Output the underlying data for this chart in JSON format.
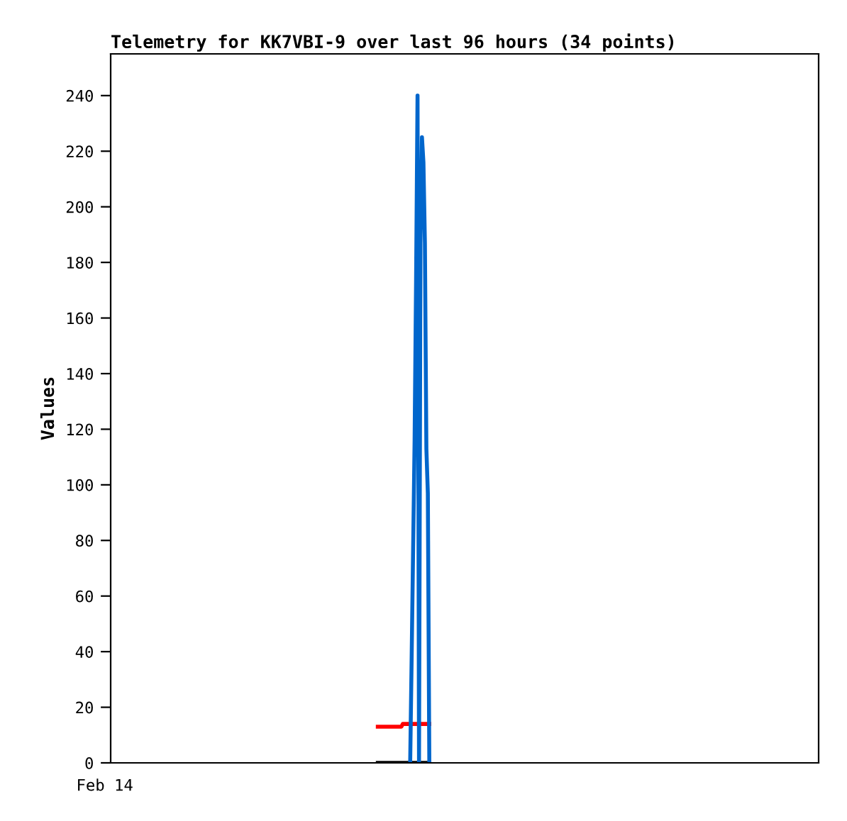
{
  "chart_data": {
    "type": "line",
    "title": "Telemetry for KK7VBI-9 over last 96 hours (34 points)",
    "ylabel": "Values",
    "categories": [
      null,
      null,
      null,
      null,
      null,
      null,
      null,
      null,
      null,
      null,
      null,
      null,
      null,
      null,
      null,
      null,
      null,
      null,
      null,
      null,
      null,
      null,
      null,
      null,
      null,
      null,
      null,
      null,
      null,
      null,
      null,
      null,
      null,
      null,
      null,
      null,
      null,
      null,
      null,
      null,
      null,
      null,
      null,
      null,
      null,
      null,
      null,
      null,
      null,
      null,
      null,
      null,
      null,
      null,
      null,
      null,
      null,
      null,
      null,
      null,
      null,
      null,
      null,
      null,
      null,
      null,
      null,
      null,
      null,
      null,
      null,
      null,
      null,
      null,
      null,
      null,
      null,
      null,
      null,
      null,
      null,
      null,
      null,
      null,
      null,
      null,
      null,
      null,
      null,
      null,
      null,
      null,
      null,
      null,
      null,
      null,
      null,
      null,
      null,
      null,
      null,
      null,
      null,
      null,
      null,
      null,
      null,
      null,
      null,
      null,
      null,
      null,
      null,
      null,
      null,
      null,
      null,
      null,
      null,
      null,
      null,
      null,
      null,
      null,
      null,
      null,
      null,
      null,
      null,
      null,
      null,
      null,
      null,
      null,
      null,
      null,
      null,
      null,
      null,
      null,
      null,
      null,
      null,
      null,
      null,
      null,
      null,
      null,
      null,
      null,
      null,
      null,
      null,
      null,
      null,
      null,
      null,
      null,
      null,
      null,
      null,
      null,
      null,
      null,
      null,
      null,
      null,
      null,
      null,
      null,
      null,
      null,
      null,
      null,
      null,
      null,
      null,
      null,
      null,
      null,
      null,
      null,
      null,
      null,
      null,
      null,
      null,
      null,
      null,
      null,
      null,
      null,
      null,
      null,
      null,
      null,
      null,
      null,
      null,
      null,
      null,
      null,
      null,
      null,
      null,
      null,
      null,
      null,
      null,
      null,
      null,
      null,
      null,
      null,
      null,
      null,
      null,
      null,
      null,
      null,
      null,
      null,
      null,
      null,
      null,
      null,
      null,
      null,
      null,
      null,
      null,
      null,
      null,
      null,
      null,
      null,
      null,
      null,
      null,
      null,
      null,
      null,
      null,
      null,
      null,
      null,
      null,
      null,
      null,
      null,
      null,
      null,
      null,
      null,
      null,
      null,
      null,
      null,
      null,
      null,
      null,
      null,
      null,
      null,
      null,
      null,
      null,
      null,
      null,
      null,
      null,
      null,
      null,
      null,
      null,
      null,
      null,
      null,
      null,
      null,
      null,
      null,
      null,
      null,
      null,
      null,
      null,
      null,
      null,
      null,
      null,
      null,
      null,
      null,
      null,
      null,
      null,
      null,
      null,
      null,
      null,
      null,
      null,
      null,
      null,
      null,
      null,
      null,
      null,
      null,
      null,
      null,
      null,
      null,
      null,
      null,
      null,
      null,
      null,
      null,
      null,
      null,
      null,
      null,
      null,
      null,
      null,
      null,
      null,
      null,
      null,
      null,
      null,
      null,
      null,
      null,
      null,
      null,
      null,
      null,
      null,
      null,
      null,
      null,
      null,
      null,
      null,
      null,
      null,
      null,
      null,
      null,
      null,
      null,
      null,
      null,
      null,
      null,
      null,
      null,
      null,
      null,
      null,
      null,
      null,
      null,
      null,
      null,
      null,
      null,
      null,
      null,
      null,
      null,
      null,
      null,
      null,
      null,
      null,
      null,
      null,
      null,
      null,
      null,
      null,
      null,
      null,
      null,
      null,
      null,
      null,
      null,
      null,
      null,
      null,
      null,
      null,
      null,
      null,
      null,
      null,
      null,
      null,
      null,
      null,
      null,
      null,
      null,
      null,
      null,
      null,
      null,
      null,
      null,
      null,
      null,
      null,
      null,
      null,
      null,
      null,
      null,
      null,
      null,
      null,
      null,
      null,
      null,
      null,
      null,
      null,
      null,
      null,
      null,
      null,
      null,
      null,
      null,
      null,
      null,
      null,
      null,
      null,
      null,
      null,
      null,
      null,
      null,
      null,
      null,
      null,
      null,
      null,
      null,
      null,
      null,
      null,
      null,
      null,
      null,
      null,
      null,
      null,
      null,
      null,
      null,
      null,
      null,
      null,
      null,
      null,
      null,
      null,
      null,
      null,
      null,
      null,
      null,
      null,
      null,
      null
    ],
    "annotations": [
      "Feb 14"
    ],
    "ylim": [
      0,
      255
    ],
    "yticks": [
      0,
      20,
      40,
      60,
      80,
      100,
      120,
      140,
      160,
      180,
      200,
      220,
      240
    ],
    "grid": false,
    "marker": "none",
    "line_style": "solid",
    "series": [
      {
        "color": "#000000",
        "values": [
          null,
          null,
          null,
          null,
          null,
          null,
          null,
          null,
          null,
          null,
          null,
          null,
          null,
          null,
          null,
          null,
          null,
          null,
          null,
          null,
          null,
          null,
          null,
          null,
          null,
          null,
          null,
          null,
          null,
          null,
          null,
          null,
          null,
          null,
          null,
          null,
          null,
          null,
          null,
          null,
          null,
          null,
          null,
          null,
          null,
          null,
          null,
          null,
          null,
          null,
          null,
          null,
          null,
          null,
          null,
          null,
          null,
          null,
          null,
          null,
          null,
          null,
          null,
          null,
          null,
          null,
          null,
          null,
          null,
          null,
          null,
          null,
          null,
          null,
          null,
          null,
          null,
          null,
          null,
          null,
          null,
          null,
          null,
          null,
          null,
          null,
          null,
          null,
          null,
          null,
          null,
          null,
          null,
          null,
          null,
          null,
          null,
          null,
          null,
          null,
          null,
          null,
          null,
          null,
          null,
          null,
          null,
          null,
          null,
          null,
          null,
          null,
          null,
          null,
          null,
          null,
          null,
          null,
          null,
          null,
          null,
          null,
          null,
          null,
          null,
          null,
          null,
          null,
          null,
          null,
          null,
          null,
          null,
          null,
          null,
          null,
          null,
          null,
          null,
          null,
          null,
          null,
          null,
          null,
          null,
          null,
          null,
          null,
          null,
          null,
          null,
          null,
          null,
          null,
          null,
          null,
          null,
          null,
          null,
          null,
          null,
          null,
          null,
          null,
          null,
          null,
          null,
          null,
          null,
          null,
          null,
          null,
          null,
          null,
          null,
          null,
          null,
          null,
          null,
          null,
          null,
          0,
          0,
          0,
          0,
          0,
          0,
          0,
          0,
          0,
          0,
          0,
          0,
          0,
          0,
          0,
          0,
          0,
          0,
          0,
          0,
          0,
          0,
          0,
          0,
          0,
          0,
          0,
          0,
          0,
          0,
          0,
          0,
          0,
          0,
          0,
          0,
          null,
          null,
          null,
          null,
          null,
          null,
          null,
          null,
          null,
          null,
          null,
          null,
          null,
          null,
          null,
          null,
          null,
          null,
          null,
          null,
          null,
          null,
          null,
          null,
          null,
          null,
          null,
          null,
          null,
          null,
          null,
          null,
          null,
          null,
          null,
          null,
          null,
          null,
          null,
          null,
          null,
          null,
          null,
          null,
          null,
          null,
          null,
          null,
          null,
          null,
          null,
          null,
          null,
          null,
          null,
          null,
          null,
          null,
          null,
          null,
          null,
          null,
          null,
          null,
          null,
          null,
          null,
          null,
          null,
          null,
          null,
          null,
          null,
          null,
          null,
          null,
          null,
          null,
          null,
          null,
          null,
          null,
          null,
          null,
          null,
          null,
          null,
          null,
          null,
          null,
          null,
          null,
          null,
          null,
          null,
          null,
          null,
          null,
          null,
          null,
          null,
          null,
          null,
          null,
          null,
          null,
          null,
          null,
          null,
          null,
          null,
          null,
          null,
          null,
          null,
          null,
          null,
          null,
          null,
          null,
          null,
          null,
          null,
          null,
          null,
          null,
          null,
          null,
          null,
          null,
          null,
          null,
          null,
          null,
          null,
          null,
          null,
          null,
          null,
          null,
          null,
          null,
          null,
          null,
          null,
          null,
          null,
          null,
          null,
          null,
          null,
          null,
          null,
          null,
          null,
          null,
          null,
          null,
          null,
          null,
          null,
          null,
          null,
          null,
          null,
          null,
          null,
          null,
          null,
          null,
          null,
          null,
          null,
          null,
          null,
          null,
          null,
          null,
          null,
          null,
          null,
          null,
          null,
          null,
          null,
          null,
          null,
          null,
          null,
          null,
          null,
          null,
          null,
          null,
          null,
          null,
          null,
          null,
          null,
          null,
          null,
          null,
          null,
          null,
          null,
          null,
          null,
          null,
          null,
          null,
          null,
          null,
          null,
          null,
          null,
          null,
          null,
          null,
          null,
          null,
          null,
          null,
          null,
          null,
          null,
          null,
          null,
          null,
          null,
          null,
          null,
          null,
          null,
          null,
          null,
          null,
          null,
          null,
          null,
          null,
          null,
          null,
          null,
          null,
          null,
          null,
          null,
          null,
          null,
          null,
          null,
          null,
          null,
          null,
          null,
          null,
          null,
          null,
          null,
          null,
          null,
          null,
          null,
          null
        ]
      },
      {
        "color": "#ff0000",
        "values": [
          null,
          null,
          null,
          null,
          null,
          null,
          null,
          null,
          null,
          null,
          null,
          null,
          null,
          null,
          null,
          null,
          null,
          null,
          null,
          null,
          null,
          null,
          null,
          null,
          null,
          null,
          null,
          null,
          null,
          null,
          null,
          null,
          null,
          null,
          null,
          null,
          null,
          null,
          null,
          null,
          null,
          null,
          null,
          null,
          null,
          null,
          null,
          null,
          null,
          null,
          null,
          null,
          null,
          null,
          null,
          null,
          null,
          null,
          null,
          null,
          null,
          null,
          null,
          null,
          null,
          null,
          null,
          null,
          null,
          null,
          null,
          null,
          null,
          null,
          null,
          null,
          null,
          null,
          null,
          null,
          null,
          null,
          null,
          null,
          null,
          null,
          null,
          null,
          null,
          null,
          null,
          null,
          null,
          null,
          null,
          null,
          null,
          null,
          null,
          null,
          null,
          null,
          null,
          null,
          null,
          null,
          null,
          null,
          null,
          null,
          null,
          null,
          null,
          null,
          null,
          null,
          null,
          null,
          null,
          null,
          null,
          null,
          null,
          null,
          null,
          null,
          null,
          null,
          null,
          null,
          null,
          null,
          null,
          null,
          null,
          null,
          null,
          null,
          null,
          null,
          null,
          null,
          null,
          null,
          null,
          null,
          null,
          null,
          null,
          null,
          null,
          null,
          null,
          null,
          null,
          null,
          null,
          null,
          null,
          null,
          null,
          null,
          null,
          null,
          null,
          null,
          null,
          null,
          null,
          null,
          null,
          null,
          null,
          null,
          null,
          null,
          null,
          null,
          null,
          null,
          null,
          13,
          13,
          13,
          13,
          13,
          13,
          13,
          13,
          13,
          13,
          13,
          13,
          13,
          13,
          13,
          13,
          13,
          14,
          14,
          14,
          14,
          14,
          14,
          14,
          14,
          14,
          14,
          14,
          14,
          14,
          14,
          14,
          14,
          14,
          14,
          14,
          null,
          null,
          null,
          null,
          null,
          null,
          null,
          null,
          null,
          null,
          null,
          null,
          null,
          null,
          null,
          null,
          null,
          null,
          null,
          null,
          null,
          null,
          null,
          null,
          null,
          null,
          null,
          null,
          null,
          null,
          null,
          null,
          null,
          null,
          null,
          null,
          null,
          null,
          null,
          null,
          null,
          null,
          null,
          null,
          null,
          null,
          null,
          null,
          null,
          null,
          null,
          null,
          null,
          null,
          null,
          null,
          null,
          null,
          null,
          null,
          null,
          null,
          null,
          null,
          null,
          null,
          null,
          null,
          null,
          null,
          null,
          null,
          null,
          null,
          null,
          null,
          null,
          null,
          null,
          null,
          null,
          null,
          null,
          null,
          null,
          null,
          null,
          null,
          null,
          null,
          null,
          null,
          null,
          null,
          null,
          null,
          null,
          null,
          null,
          null,
          null,
          null,
          null,
          null,
          null,
          null,
          null,
          null,
          null,
          null,
          null,
          null,
          null,
          null,
          null,
          null,
          null,
          null,
          null,
          null,
          null,
          null,
          null,
          null,
          null,
          null,
          null,
          null,
          null,
          null,
          null,
          null,
          null,
          null,
          null,
          null,
          null,
          null,
          null,
          null,
          null,
          null,
          null,
          null,
          null,
          null,
          null,
          null,
          null,
          null,
          null,
          null,
          null,
          null,
          null,
          null,
          null,
          null,
          null,
          null,
          null,
          null,
          null,
          null,
          null,
          null,
          null,
          null,
          null,
          null,
          null,
          null,
          null,
          null,
          null,
          null,
          null,
          null,
          null,
          null,
          null,
          null,
          null,
          null,
          null,
          null,
          null,
          null,
          null,
          null,
          null,
          null,
          null,
          null,
          null,
          null,
          null,
          null,
          null,
          null,
          null,
          null,
          null,
          null,
          null,
          null,
          null,
          null,
          null,
          null,
          null,
          null,
          null,
          null,
          null,
          null,
          null,
          null,
          null,
          null,
          null,
          null,
          null,
          null,
          null,
          null,
          null,
          null,
          null,
          null,
          null,
          null,
          null,
          null,
          null,
          null,
          null,
          null,
          null,
          null,
          null,
          null,
          null,
          null,
          null,
          null,
          null,
          null,
          null,
          null,
          null,
          null,
          null,
          null,
          null,
          null,
          null,
          null,
          null,
          null,
          null,
          null,
          null,
          null
        ]
      },
      {
        "color": "#0066cc",
        "values": [
          null,
          null,
          null,
          null,
          null,
          null,
          null,
          null,
          null,
          null,
          null,
          null,
          null,
          null,
          null,
          null,
          null,
          null,
          null,
          null,
          null,
          null,
          null,
          null,
          null,
          null,
          null,
          null,
          null,
          null,
          null,
          null,
          null,
          null,
          null,
          null,
          null,
          null,
          null,
          null,
          null,
          null,
          null,
          null,
          null,
          null,
          null,
          null,
          null,
          null,
          null,
          null,
          null,
          null,
          null,
          null,
          null,
          null,
          null,
          null,
          null,
          null,
          null,
          null,
          null,
          null,
          null,
          null,
          null,
          null,
          null,
          null,
          null,
          null,
          null,
          null,
          null,
          null,
          null,
          null,
          null,
          null,
          null,
          null,
          null,
          null,
          null,
          null,
          null,
          null,
          null,
          null,
          null,
          null,
          null,
          null,
          null,
          null,
          null,
          null,
          null,
          null,
          null,
          null,
          null,
          null,
          null,
          null,
          null,
          null,
          null,
          null,
          null,
          null,
          null,
          null,
          null,
          null,
          null,
          null,
          null,
          null,
          null,
          null,
          null,
          null,
          null,
          null,
          null,
          null,
          null,
          null,
          null,
          null,
          null,
          null,
          null,
          null,
          null,
          null,
          null,
          null,
          null,
          null,
          null,
          null,
          null,
          null,
          null,
          null,
          null,
          null,
          null,
          null,
          null,
          null,
          null,
          null,
          null,
          null,
          null,
          null,
          null,
          null,
          null,
          null,
          null,
          null,
          null,
          null,
          null,
          null,
          null,
          null,
          null,
          null,
          null,
          null,
          null,
          null,
          null,
          null,
          null,
          null,
          null,
          null,
          null,
          null,
          null,
          null,
          null,
          null,
          null,
          null,
          null,
          null,
          null,
          null,
          null,
          null,
          null,
          null,
          null,
          0,
          38,
          77,
          116,
          173,
          240,
          0,
          187,
          225,
          216,
          187,
          113,
          97,
          0,
          null,
          null,
          null,
          null,
          null,
          null,
          null,
          null,
          null,
          null,
          null,
          null,
          null,
          null,
          null,
          null,
          null,
          null,
          null,
          null,
          null,
          null,
          null,
          null,
          null,
          null,
          null,
          null,
          null,
          null,
          null,
          null,
          null,
          null,
          null,
          null,
          null,
          null,
          null,
          null,
          null,
          null,
          null,
          null,
          null,
          null,
          null,
          null,
          null,
          null,
          null,
          null,
          null,
          null,
          null,
          null,
          null,
          null,
          null,
          null,
          null,
          null,
          null,
          null,
          null,
          null,
          null,
          null,
          null,
          null,
          null,
          null,
          null,
          null,
          null,
          null,
          null,
          null,
          null,
          null,
          null,
          null,
          null,
          null,
          null,
          null,
          null,
          null,
          null,
          null,
          null,
          null,
          null,
          null,
          null,
          null,
          null,
          null,
          null,
          null,
          null,
          null,
          null,
          null,
          null,
          null,
          null,
          null,
          null,
          null,
          null,
          null,
          null,
          null,
          null,
          null,
          null,
          null,
          null,
          null,
          null,
          null,
          null,
          null,
          null,
          null,
          null,
          null,
          null,
          null,
          null,
          null,
          null,
          null,
          null,
          null,
          null,
          null,
          null,
          null,
          null,
          null,
          null,
          null,
          null,
          null,
          null,
          null,
          null,
          null,
          null,
          null,
          null,
          null,
          null,
          null,
          null,
          null,
          null,
          null,
          null,
          null,
          null,
          null,
          null,
          null,
          null,
          null,
          null,
          null,
          null,
          null,
          null,
          null,
          null,
          null,
          null,
          null,
          null,
          null,
          null,
          null,
          null,
          null,
          null,
          null,
          null,
          null,
          null,
          null,
          null,
          null,
          null,
          null,
          null,
          null,
          null,
          null,
          null,
          null,
          null,
          null,
          null,
          null,
          null,
          null,
          null,
          null,
          null,
          null,
          null,
          null,
          null,
          null,
          null,
          null,
          null,
          null,
          null,
          null,
          null,
          null,
          null,
          null,
          null,
          null,
          null,
          null,
          null,
          null,
          null,
          null,
          null,
          null,
          null,
          null,
          null,
          null,
          null,
          null,
          null,
          null,
          null,
          null,
          null,
          null,
          null,
          null,
          null,
          null,
          null,
          null,
          null,
          null,
          null,
          null,
          null,
          null,
          null,
          null,
          null,
          null,
          null,
          null
        ]
      }
    ]
  }
}
